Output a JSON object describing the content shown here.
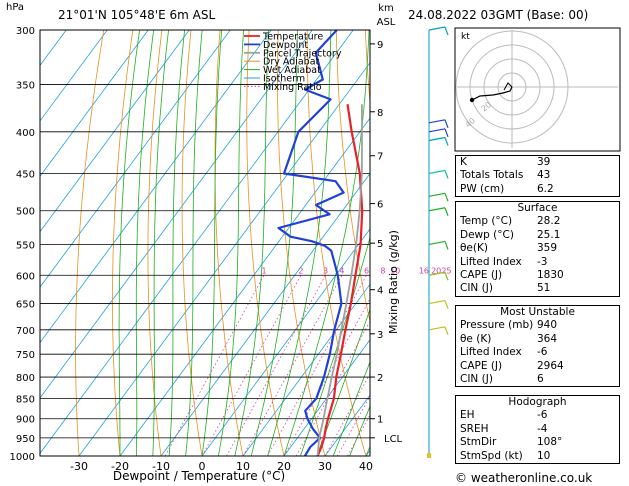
{
  "header": {
    "location": "21°01'N  105°48'E  6m  ASL",
    "datetime": "24.08.2022  03GMT  (Base: 00)"
  },
  "chart_data": {
    "type": "line",
    "title": "",
    "ylabel_left": "hPa",
    "ylabel_right_km": "km ASL",
    "mixing_ratio_label": "Mixing Ratio (g/kg)",
    "xlabel": "Dewpoint / Temperature (°C)",
    "pressure_ticks": [
      300,
      350,
      400,
      450,
      500,
      550,
      600,
      650,
      700,
      750,
      800,
      850,
      900,
      950,
      1000
    ],
    "temp_ticks": [
      -30,
      -20,
      -10,
      0,
      10,
      20,
      30,
      40
    ],
    "xlim": [
      -40,
      40
    ],
    "ylim": [
      1000,
      300
    ],
    "y_scale": "log",
    "km_ticks": [
      {
        "label": "9",
        "p": 312
      },
      {
        "label": "8",
        "p": 378
      },
      {
        "label": "7",
        "p": 428
      },
      {
        "label": "6",
        "p": 490
      },
      {
        "label": "5",
        "p": 548
      },
      {
        "label": "4",
        "p": 625
      },
      {
        "label": "3",
        "p": 708
      },
      {
        "label": "2",
        "p": 800
      },
      {
        "label": "1",
        "p": 900
      },
      {
        "label": "LCL",
        "p": 950
      }
    ],
    "mixing_ratio_values": [
      {
        "label": "1",
        "t": -9
      },
      {
        "label": "2",
        "t": 0
      },
      {
        "label": "3",
        "t": 6
      },
      {
        "label": "4",
        "t": 10
      },
      {
        "label": "6",
        "t": 16
      },
      {
        "label": "8",
        "t": 20
      },
      {
        "label": "10",
        "t": 23
      },
      {
        "label": "16",
        "t": 30
      },
      {
        "label": "20",
        "t": 33
      },
      {
        "label": "25",
        "t": 35.5
      }
    ],
    "legend": [
      "Temperature",
      "Dewpoint",
      "Parcel Trajectory",
      "Dry Adiabat",
      "Wet Adiabat",
      "Isotherm",
      "Mixing Ratio"
    ],
    "series": [
      {
        "name": "Temperature",
        "color": "#e8202a",
        "p": [
          1000,
          975,
          950,
          925,
          900,
          850,
          800,
          750,
          700,
          650,
          600,
          550,
          500,
          450,
          400,
          370
        ],
        "t": [
          28.2,
          27.5,
          26.5,
          25.2,
          24.0,
          21.8,
          18.5,
          15.5,
          12.2,
          8.8,
          4.8,
          0.5,
          -5.2,
          -12.5,
          -22.0,
          -28.0
        ]
      },
      {
        "name": "Dewpoint",
        "color": "#2040d8",
        "p": [
          1000,
          975,
          950,
          925,
          900,
          880,
          850,
          800,
          750,
          700,
          650,
          600,
          560,
          552,
          545,
          538,
          525,
          505,
          492,
          475,
          460,
          450,
          400,
          365,
          355,
          345,
          320,
          300
        ],
        "t": [
          25.1,
          24.8,
          25.5,
          22.0,
          19.0,
          17.0,
          17.5,
          15.5,
          12.8,
          9.5,
          6.5,
          0.5,
          -5.5,
          -8.0,
          -12.0,
          -18.0,
          -22.5,
          -12.5,
          -17.5,
          -13.0,
          -17.0,
          -31.0,
          -35.0,
          -33.0,
          -41.0,
          -38.5,
          -45.0,
          -44.0
        ]
      },
      {
        "name": "Parcel Trajectory",
        "color": "#a0a0a0",
        "p": [
          1000,
          950,
          900,
          850,
          800,
          750,
          700,
          650,
          600,
          550,
          500,
          450,
          400,
          370
        ],
        "t": [
          28.2,
          25.3,
          22.9,
          20.2,
          17.4,
          14.5,
          11.2,
          7.7,
          3.8,
          -0.6,
          -5.8,
          -12.0,
          -19.5,
          -24.5
        ]
      }
    ],
    "hodograph": {
      "label": "kt",
      "ring_labels": [
        "20",
        "40"
      ]
    }
  },
  "indices": {
    "rows": [
      {
        "label": "K",
        "value": "39"
      },
      {
        "label": "Totals Totals",
        "value": "43"
      },
      {
        "label": "PW (cm)",
        "value": "6.2"
      }
    ]
  },
  "surface": {
    "title": "Surface",
    "rows": [
      {
        "label": "Temp (°C)",
        "value": "28.2"
      },
      {
        "label": "Dewp (°C)",
        "value": "25.1"
      },
      {
        "label": "θe(K)",
        "value": "359"
      },
      {
        "label": "Lifted Index",
        "value": "-3"
      },
      {
        "label": "CAPE (J)",
        "value": "1830"
      },
      {
        "label": "CIN (J)",
        "value": "51"
      }
    ]
  },
  "most_unstable": {
    "title": "Most Unstable",
    "rows": [
      {
        "label": "Pressure (mb)",
        "value": "940"
      },
      {
        "label": "θe (K)",
        "value": "364"
      },
      {
        "label": "Lifted Index",
        "value": "-6"
      },
      {
        "label": "CAPE (J)",
        "value": "2964"
      },
      {
        "label": "CIN (J)",
        "value": "6"
      }
    ]
  },
  "hodograph_params": {
    "title": "Hodograph",
    "rows": [
      {
        "label": "EH",
        "value": "-6"
      },
      {
        "label": "SREH",
        "value": "-4"
      },
      {
        "label": "StmDir",
        "value": "108°"
      },
      {
        "label": "StmSpd (kt)",
        "value": "10"
      }
    ]
  },
  "copyright": "© weatheronline.co.uk",
  "colors": {
    "temperature": "#e8202a",
    "dewpoint": "#2040d8",
    "parcel": "#a0a0a0",
    "dry_adiabat": "#e89020",
    "wet_adiabat": "#20b020",
    "isotherm": "#20a0e0",
    "mixing_ratio": "#d040a0"
  }
}
